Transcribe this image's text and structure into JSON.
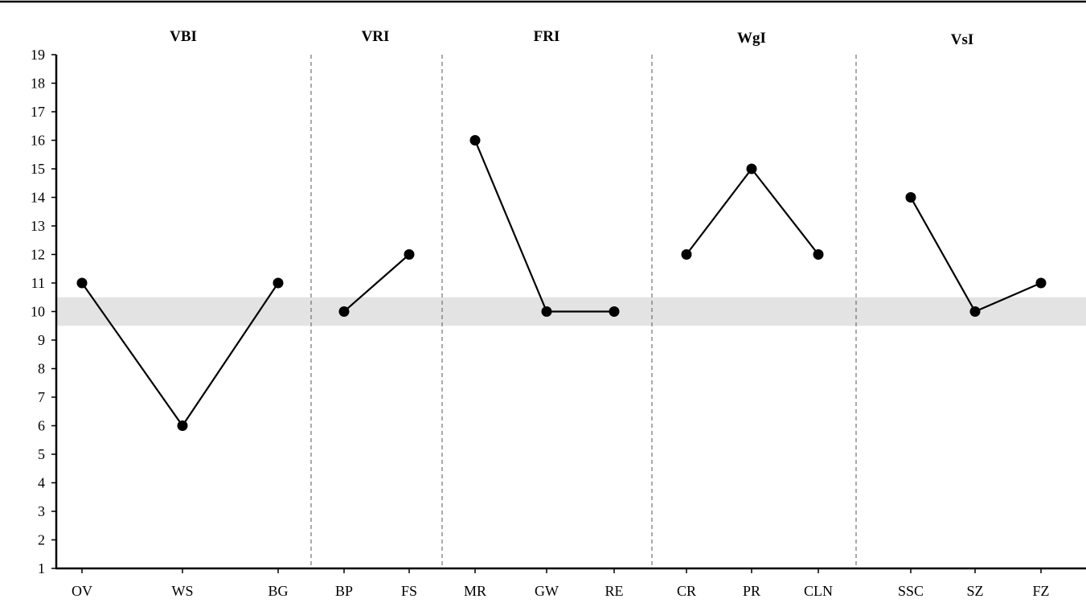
{
  "chart_data": {
    "type": "line",
    "title": "",
    "xlabel": "",
    "ylabel": "",
    "ylim": [
      1,
      19
    ],
    "yticks": [
      1,
      2,
      3,
      4,
      5,
      6,
      7,
      8,
      9,
      10,
      11,
      12,
      13,
      14,
      15,
      16,
      17,
      18,
      19
    ],
    "grid": false,
    "reference_band": {
      "from": 9.5,
      "to": 10.5,
      "color": "#e3e3e3"
    },
    "groups": [
      {
        "name": "VBI",
        "categories": [
          "OV",
          "WS",
          "BG"
        ],
        "values": [
          11,
          6,
          11
        ]
      },
      {
        "name": "VRI",
        "categories": [
          "BP",
          "FS"
        ],
        "values": [
          10,
          12
        ]
      },
      {
        "name": "FRI",
        "categories": [
          "MR",
          "GW",
          "RE"
        ],
        "values": [
          16,
          10,
          10
        ]
      },
      {
        "name": "WgI",
        "categories": [
          "CR",
          "PR",
          "CLN"
        ],
        "values": [
          12,
          15,
          12
        ]
      },
      {
        "name": "VsI",
        "categories": [
          "SSC",
          "SZ",
          "FZ"
        ],
        "values": [
          14,
          10,
          11
        ]
      }
    ]
  },
  "colors": {
    "line": "#000000",
    "marker": "#000000",
    "band": "#e3e3e3",
    "divider": "#555555"
  }
}
